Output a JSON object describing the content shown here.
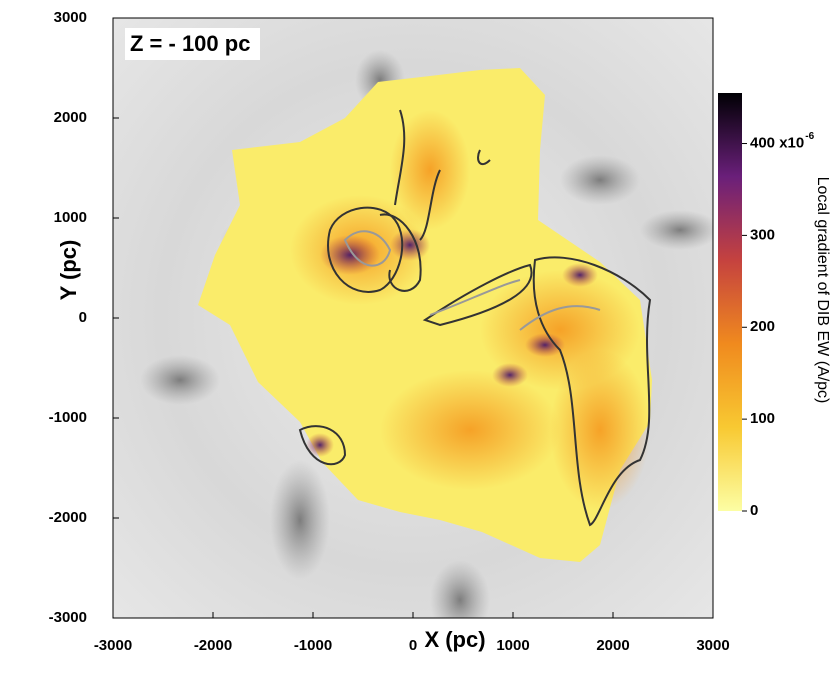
{
  "chart_data": {
    "type": "map",
    "title": "Z = - 100 pc",
    "x_label": "X (pc)",
    "y_label": "Y (pc)",
    "xlim": [
      -3000,
      3000
    ],
    "ylim": [
      -3000,
      3000
    ],
    "xticks": [
      -3000,
      -2000,
      -1000,
      0,
      1000,
      2000,
      3000
    ],
    "yticks": [
      -3000,
      -2000,
      -1000,
      0,
      1000,
      2000,
      3000
    ],
    "colorbar_label": "Local gradient of DIB EW (A/pc)",
    "colorbar_lim": [
      0,
      455
    ],
    "colorbar_ticks": [
      0,
      100,
      200,
      300,
      {
        "value": 400,
        "label": "400 x10"
      }
    ],
    "colorbar_exponent": "-6",
    "colormap": [
      "#fcfea4",
      "#f8c932",
      "#f08a1e",
      "#c5423f",
      "#6a1f7a",
      "#000004"
    ]
  }
}
